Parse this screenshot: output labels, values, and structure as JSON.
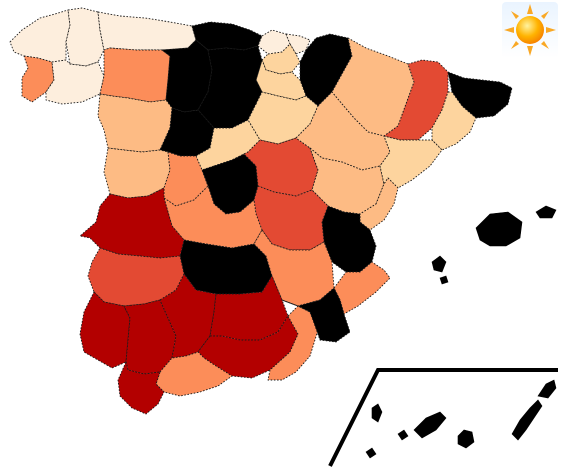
{
  "legend_colors": {
    "class_1": "#fdeedd",
    "class_2": "#fdd49e",
    "class_3": "#fdbb84",
    "class_4": "#fc8d59",
    "class_5": "#e34a33",
    "class_6": "#b30000",
    "class_7": "#000000"
  },
  "icons": {
    "weather": "sun-icon"
  },
  "regions": [
    {
      "id": "a-coruna",
      "class": "class_1"
    },
    {
      "id": "lugo",
      "class": "class_1"
    },
    {
      "id": "asturias",
      "class": "class_1"
    },
    {
      "id": "cantabria",
      "class": "class_7"
    },
    {
      "id": "bizkaia",
      "class": "class_1"
    },
    {
      "id": "gipuzkoa",
      "class": "class_1"
    },
    {
      "id": "navarra",
      "class": "class_7"
    },
    {
      "id": "pontevedra",
      "class": "class_4"
    },
    {
      "id": "ourense",
      "class": "class_1"
    },
    {
      "id": "leon",
      "class": "class_4"
    },
    {
      "id": "palencia",
      "class": "class_7"
    },
    {
      "id": "burgos",
      "class": "class_7"
    },
    {
      "id": "alava",
      "class": "class_2"
    },
    {
      "id": "la-rioja",
      "class": "class_2"
    },
    {
      "id": "huesca",
      "class": "class_3"
    },
    {
      "id": "lleida",
      "class": "class_5"
    },
    {
      "id": "girona",
      "class": "class_7"
    },
    {
      "id": "barcelona",
      "class": "class_2"
    },
    {
      "id": "zamora",
      "class": "class_3"
    },
    {
      "id": "valladolid",
      "class": "class_7"
    },
    {
      "id": "soria",
      "class": "class_2"
    },
    {
      "id": "zaragoza",
      "class": "class_3"
    },
    {
      "id": "tarragona",
      "class": "class_2"
    },
    {
      "id": "salamanca",
      "class": "class_3"
    },
    {
      "id": "avila",
      "class": "class_4"
    },
    {
      "id": "segovia",
      "class": "class_2"
    },
    {
      "id": "madrid",
      "class": "class_7"
    },
    {
      "id": "guadalajara",
      "class": "class_5"
    },
    {
      "id": "teruel",
      "class": "class_3"
    },
    {
      "id": "castellon",
      "class": "class_3"
    },
    {
      "id": "caceres",
      "class": "class_6"
    },
    {
      "id": "toledo",
      "class": "class_4"
    },
    {
      "id": "cuenca",
      "class": "class_5"
    },
    {
      "id": "valencia",
      "class": "class_7"
    },
    {
      "id": "badajoz",
      "class": "class_5"
    },
    {
      "id": "ciudad-real",
      "class": "class_7"
    },
    {
      "id": "albacete",
      "class": "class_4"
    },
    {
      "id": "alicante",
      "class": "class_4"
    },
    {
      "id": "huelva",
      "class": "class_6"
    },
    {
      "id": "sevilla",
      "class": "class_6"
    },
    {
      "id": "cordoba",
      "class": "class_6"
    },
    {
      "id": "jaen",
      "class": "class_6"
    },
    {
      "id": "granada",
      "class": "class_6"
    },
    {
      "id": "murcia",
      "class": "class_7"
    },
    {
      "id": "almeria",
      "class": "class_4"
    },
    {
      "id": "cadiz",
      "class": "class_6"
    },
    {
      "id": "malaga",
      "class": "class_4"
    },
    {
      "id": "baleares",
      "class": "class_7"
    },
    {
      "id": "canarias",
      "class": "class_7"
    }
  ]
}
